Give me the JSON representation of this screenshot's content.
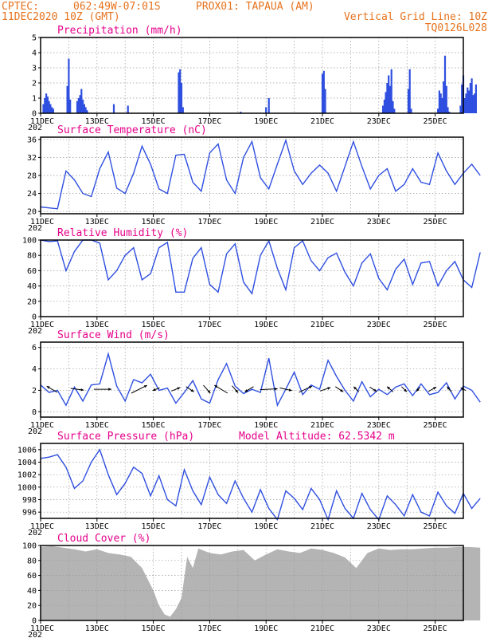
{
  "header": {
    "source": "CPTEC:",
    "coords": "062:49W-07:01S",
    "station": "PROX01: TAPAUA (AM)",
    "datetime": "11DEC2020 10Z (GMT)",
    "grid_note": "Vertical Grid Line: 10Z",
    "model_code": "TQ0126L028"
  },
  "x_axis": {
    "start_label": "11DEC",
    "year_stub": "202",
    "tick_labels": [
      "11DEC",
      "13DEC",
      "15DEC",
      "17DEC",
      "19DEC",
      "21DEC",
      "23DEC",
      "25DEC"
    ],
    "tick_days": [
      0,
      2,
      4,
      6,
      8,
      10,
      12,
      14
    ],
    "grid_every_days": 1,
    "span_days": 15
  },
  "chart_data": [
    {
      "id": "precipitation",
      "type": "bar",
      "title": "Precipitation (mm/h)",
      "ylim": [
        0,
        5
      ],
      "yticks": [
        0,
        1,
        2,
        3,
        4,
        5
      ],
      "color": "#2f4fe0",
      "x": [
        0.1,
        0.15,
        0.2,
        0.25,
        0.3,
        0.35,
        0.4,
        0.45,
        0.95,
        1.0,
        1.05,
        1.3,
        1.35,
        1.4,
        1.45,
        1.5,
        1.55,
        1.6,
        1.65,
        2.6,
        3.1,
        3.1,
        4.9,
        4.95,
        5.0,
        5.05,
        7.1,
        8.0,
        8.1,
        10.0,
        10.05,
        10.1,
        12.15,
        12.2,
        12.25,
        12.3,
        12.35,
        12.4,
        12.45,
        12.5,
        12.55,
        13.05,
        13.1,
        13.15,
        14.1,
        14.15,
        14.2,
        14.25,
        14.3,
        14.35,
        14.4,
        14.45,
        14.5,
        14.9,
        14.95,
        15.0,
        15.05,
        15.1,
        15.15,
        15.2,
        15.25,
        15.3,
        15.35,
        15.4,
        15.45
      ],
      "values": [
        0.6,
        1.0,
        1.3,
        1.1,
        0.8,
        0.6,
        0.4,
        0.3,
        1.8,
        3.6,
        0.9,
        0.8,
        1.0,
        1.2,
        1.6,
        0.9,
        0.6,
        0.4,
        0.2,
        0.6,
        0.1,
        0.5,
        2.7,
        2.9,
        2.0,
        0.4,
        0.1,
        0.4,
        1.0,
        2.6,
        2.8,
        1.6,
        0.5,
        0.9,
        1.4,
        2.0,
        2.5,
        1.8,
        2.9,
        0.8,
        0.3,
        1.6,
        2.9,
        0.3,
        0.3,
        1.5,
        1.3,
        1.0,
        2.1,
        3.8,
        1.8,
        0.4,
        0.1,
        0.5,
        1.9,
        2.5,
        1.0,
        1.3,
        1.7,
        1.5,
        2.0,
        2.3,
        1.2,
        1.3,
        1.9
      ]
    },
    {
      "id": "temperature",
      "type": "line",
      "title": "Surface Temperature (nC)",
      "ylim": [
        19.5,
        36.5
      ],
      "yticks": [
        20,
        24,
        28,
        32,
        36
      ],
      "color": "#2f4fe0",
      "x": [
        0.0,
        0.3,
        0.6,
        0.9,
        1.2,
        1.5,
        1.8,
        2.1,
        2.4,
        2.7,
        3.0,
        3.3,
        3.6,
        3.9,
        4.2,
        4.5,
        4.8,
        5.1,
        5.4,
        5.7,
        6.0,
        6.3,
        6.6,
        6.9,
        7.2,
        7.5,
        7.8,
        8.1,
        8.4,
        8.7,
        9.0,
        9.3,
        9.6,
        9.9,
        10.2,
        10.5,
        10.8,
        11.1,
        11.4,
        11.7,
        12.0,
        12.3,
        12.6,
        12.9,
        13.2,
        13.5,
        13.8,
        14.1,
        14.4,
        14.7,
        15.0,
        15.3,
        15.6
      ],
      "values": [
        21.0,
        20.8,
        20.6,
        29.0,
        27.0,
        24.0,
        23.3,
        29.5,
        33.2,
        25.2,
        24.0,
        28.5,
        34.5,
        30.5,
        25.0,
        24.0,
        32.5,
        32.7,
        26.5,
        24.5,
        33.0,
        35.0,
        27.0,
        24.0,
        32.0,
        35.5,
        27.5,
        25.0,
        30.5,
        35.8,
        29.0,
        26.0,
        28.5,
        30.3,
        28.5,
        24.5,
        30.0,
        35.5,
        30.0,
        25.0,
        28.0,
        29.5,
        24.5,
        26.0,
        29.5,
        26.5,
        26.0,
        33.0,
        29.0,
        26.0,
        28.5,
        30.5,
        28.0
      ]
    },
    {
      "id": "humidity",
      "type": "line",
      "title": "Relative Humidity (%)",
      "ylim": [
        0,
        100
      ],
      "yticks": [
        0,
        20,
        40,
        60,
        80,
        100
      ],
      "color": "#2f4fe0",
      "x": [
        0.0,
        0.3,
        0.6,
        0.9,
        1.2,
        1.5,
        1.8,
        2.1,
        2.4,
        2.7,
        3.0,
        3.3,
        3.6,
        3.9,
        4.2,
        4.5,
        4.8,
        5.1,
        5.4,
        5.7,
        6.0,
        6.3,
        6.6,
        6.9,
        7.2,
        7.5,
        7.8,
        8.1,
        8.4,
        8.7,
        9.0,
        9.3,
        9.6,
        9.9,
        10.2,
        10.5,
        10.8,
        11.1,
        11.4,
        11.7,
        12.0,
        12.3,
        12.6,
        12.9,
        13.2,
        13.5,
        13.8,
        14.1,
        14.4,
        14.7,
        15.0,
        15.3,
        15.6
      ],
      "values": [
        100,
        98,
        99,
        60,
        85,
        100,
        100,
        96,
        48,
        60,
        80,
        90,
        48,
        56,
        90,
        97,
        32,
        32,
        76,
        90,
        42,
        32,
        82,
        95,
        45,
        30,
        80,
        99,
        63,
        35,
        90,
        99,
        73,
        60,
        77,
        83,
        58,
        40,
        70,
        82,
        50,
        35,
        62,
        75,
        42,
        70,
        72,
        40,
        60,
        72,
        48,
        38,
        84
      ]
    },
    {
      "id": "wind",
      "type": "line",
      "title": "Surface Wind (m/s)",
      "ylim": [
        -0.5,
        6.5
      ],
      "yticks": [
        0,
        2,
        4,
        6
      ],
      "color": "#2f4fe0",
      "x": [
        0.0,
        0.3,
        0.6,
        0.9,
        1.2,
        1.5,
        1.8,
        2.1,
        2.4,
        2.7,
        3.0,
        3.3,
        3.6,
        3.9,
        4.2,
        4.5,
        4.8,
        5.1,
        5.4,
        5.7,
        6.0,
        6.3,
        6.6,
        6.9,
        7.2,
        7.5,
        7.8,
        8.1,
        8.4,
        8.7,
        9.0,
        9.3,
        9.6,
        9.9,
        10.2,
        10.5,
        10.8,
        11.1,
        11.4,
        11.7,
        12.0,
        12.3,
        12.6,
        12.9,
        13.2,
        13.5,
        13.8,
        14.1,
        14.4,
        14.7,
        15.0,
        15.3,
        15.6
      ],
      "values": [
        2.5,
        1.8,
        2.0,
        0.6,
        2.3,
        1.0,
        2.5,
        2.6,
        5.4,
        2.4,
        1.0,
        3.0,
        2.7,
        3.5,
        2.0,
        2.2,
        0.8,
        1.8,
        2.9,
        1.2,
        0.8,
        3.0,
        4.5,
        2.4,
        1.7,
        2.1,
        1.8,
        5.0,
        0.6,
        2.1,
        3.7,
        1.6,
        2.5,
        2.1,
        4.8,
        3.3,
        2.0,
        1.0,
        2.8,
        1.4,
        2.1,
        1.6,
        2.3,
        2.6,
        1.5,
        2.6,
        1.6,
        1.8,
        2.7,
        1.2,
        2.4,
        2.0,
        0.9
      ],
      "arrows_x": [
        0.4,
        1.3,
        2.2,
        3.5,
        4.1,
        4.8,
        5.3,
        5.9,
        6.4,
        6.9,
        7.4,
        8.1,
        8.7,
        9.4,
        10.1,
        10.6,
        11.2,
        11.8,
        12.4,
        12.9,
        13.4,
        13.9,
        14.5,
        15.0
      ],
      "arrows_u": [
        -1.2,
        1.5,
        2.0,
        1.8,
        -0.8,
        1.0,
        0.9,
        0.8,
        -1.5,
        0.7,
        -1.0,
        2.0,
        1.4,
        1.5,
        1.2,
        0.9,
        -0.6,
        0.8,
        -0.7,
        0.6,
        -0.4,
        0.9,
        -0.5,
        -0.6
      ],
      "arrows_v": [
        0.7,
        -0.2,
        0.0,
        0.9,
        -0.3,
        0.4,
        -0.6,
        -0.9,
        0.9,
        -0.8,
        -0.6,
        0.1,
        -0.3,
        0.7,
        0.4,
        -0.6,
        0.6,
        -0.5,
        0.6,
        -0.6,
        -0.5,
        0.5,
        0.6,
        0.3
      ]
    },
    {
      "id": "pressure",
      "type": "line",
      "title": "Surface Pressure (hPa)",
      "annotation": "Model Altitude: 62.5342 m",
      "ylim": [
        995,
        1007
      ],
      "yticks": [
        996,
        998,
        1000,
        1002,
        1004,
        1006
      ],
      "color": "#2f4fe0",
      "x": [
        0.0,
        0.3,
        0.6,
        0.9,
        1.2,
        1.5,
        1.8,
        2.1,
        2.4,
        2.7,
        3.0,
        3.3,
        3.6,
        3.9,
        4.2,
        4.5,
        4.8,
        5.1,
        5.4,
        5.7,
        6.0,
        6.3,
        6.6,
        6.9,
        7.2,
        7.5,
        7.8,
        8.1,
        8.4,
        8.7,
        9.0,
        9.3,
        9.6,
        9.9,
        10.2,
        10.5,
        10.8,
        11.1,
        11.4,
        11.7,
        12.0,
        12.3,
        12.6,
        12.9,
        13.2,
        13.5,
        13.8,
        14.1,
        14.4,
        14.7,
        15.0,
        15.3,
        15.6
      ],
      "values": [
        1004.6,
        1004.8,
        1005.2,
        1003.2,
        999.8,
        1001.0,
        1004.0,
        1006.0,
        1002.0,
        998.8,
        1000.6,
        1003.2,
        1002.2,
        998.6,
        1001.8,
        998.0,
        997.0,
        1002.8,
        999.4,
        997.2,
        1001.6,
        998.8,
        997.4,
        1001.0,
        998.2,
        996.0,
        999.6,
        996.6,
        994.8,
        999.4,
        998.2,
        996.4,
        999.8,
        998.0,
        994.8,
        999.4,
        996.6,
        995.0,
        999.0,
        996.4,
        994.8,
        998.6,
        997.2,
        995.4,
        998.8,
        996.0,
        995.4,
        999.2,
        997.0,
        995.8,
        999.0,
        996.6,
        998.2
      ]
    },
    {
      "id": "cloud_cover",
      "type": "area",
      "title": "Cloud Cover (%)",
      "ylim": [
        0,
        100
      ],
      "yticks": [
        0,
        20,
        40,
        60,
        80,
        100
      ],
      "color": "#b4b4b4",
      "x": [
        0.0,
        0.4,
        0.8,
        1.2,
        1.6,
        2.0,
        2.4,
        2.8,
        3.2,
        3.6,
        3.8,
        4.0,
        4.2,
        4.4,
        4.6,
        4.8,
        5.0,
        5.2,
        5.4,
        5.6,
        6.0,
        6.4,
        6.8,
        7.2,
        7.6,
        8.0,
        8.4,
        8.8,
        9.2,
        9.6,
        10.0,
        10.4,
        10.8,
        11.2,
        11.6,
        12.0,
        12.4,
        12.8,
        13.2,
        13.6,
        14.0,
        14.4,
        14.8,
        15.2,
        15.6
      ],
      "values": [
        98,
        99,
        97,
        95,
        92,
        95,
        90,
        88,
        85,
        70,
        55,
        40,
        20,
        8,
        5,
        15,
        30,
        85,
        70,
        96,
        90,
        88,
        92,
        94,
        80,
        88,
        95,
        92,
        90,
        96,
        94,
        90,
        84,
        70,
        90,
        96,
        94,
        95,
        95,
        96,
        97,
        97,
        98,
        98,
        97
      ]
    }
  ]
}
